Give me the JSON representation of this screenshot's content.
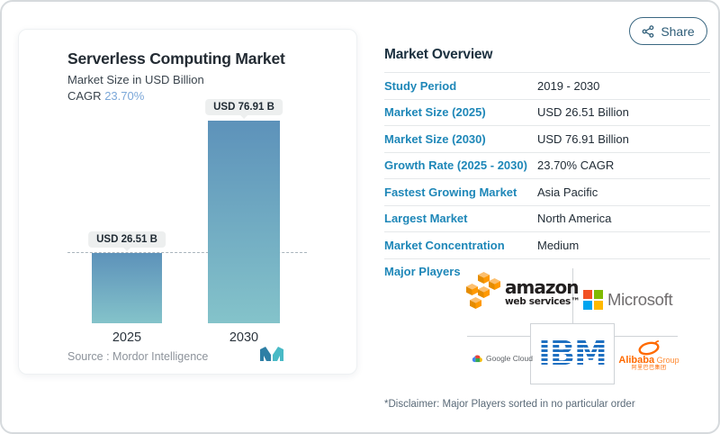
{
  "share": {
    "label": "Share"
  },
  "chart_card": {
    "title": "Serverless Computing Market",
    "subtitle": "Market Size in USD Billion",
    "cagr_label": "CAGR",
    "cagr_value": "23.70%",
    "source_label": "Source :",
    "source_value": "Mordor Intelligence"
  },
  "chart_data": {
    "type": "bar",
    "categories": [
      "2025",
      "2030"
    ],
    "values": [
      26.51,
      76.91
    ],
    "value_labels": [
      "USD 26.51 B",
      "USD 76.91 B"
    ],
    "title": "Serverless Computing Market",
    "xlabel": "",
    "ylabel": "Market Size in USD Billion",
    "ylim": [
      0,
      80
    ],
    "grid": false,
    "dashed_reference_at": 26.51,
    "bar_gradient_top": "#5d92ba",
    "bar_gradient_bottom": "#84c3ca"
  },
  "overview": {
    "heading": "Market Overview",
    "rows": [
      {
        "label": "Study Period",
        "value": "2019 - 2030"
      },
      {
        "label": "Market Size (2025)",
        "value": "USD 26.51 Billion"
      },
      {
        "label": "Market Size (2030)",
        "value": "USD 76.91 Billion"
      },
      {
        "label": "Growth Rate (2025 - 2030)",
        "value": "23.70% CAGR"
      },
      {
        "label": "Fastest Growing Market",
        "value": "Asia Pacific"
      },
      {
        "label": "Largest Market",
        "value": "North America"
      },
      {
        "label": "Market Concentration",
        "value": "Medium"
      }
    ],
    "major_players_label": "Major Players",
    "disclaimer": "*Disclaimer: Major Players sorted in no particular order"
  },
  "players": {
    "aws_main": "amazon",
    "aws_sub": "web services™",
    "microsoft": "Microsoft",
    "google": "Google Cloud",
    "ibm": "IBM",
    "alibaba_bold": "Alibaba",
    "alibaba_light": " Group",
    "alibaba_cn": "阿里巴巴集团"
  },
  "colors": {
    "accent_label_blue": "#1e87b8",
    "cagr_blue": "#7ba7d8",
    "share_teal": "#2e5d78",
    "aws_orange": "#ff9900",
    "ms_red": "#f25022",
    "ms_green": "#7fba00",
    "ms_blue": "#00a4ef",
    "ms_yellow": "#ffb900",
    "ibm_blue": "#1f70c1",
    "alibaba_orange": "#ff6a00",
    "divider_gray": "#e5e8ea"
  }
}
